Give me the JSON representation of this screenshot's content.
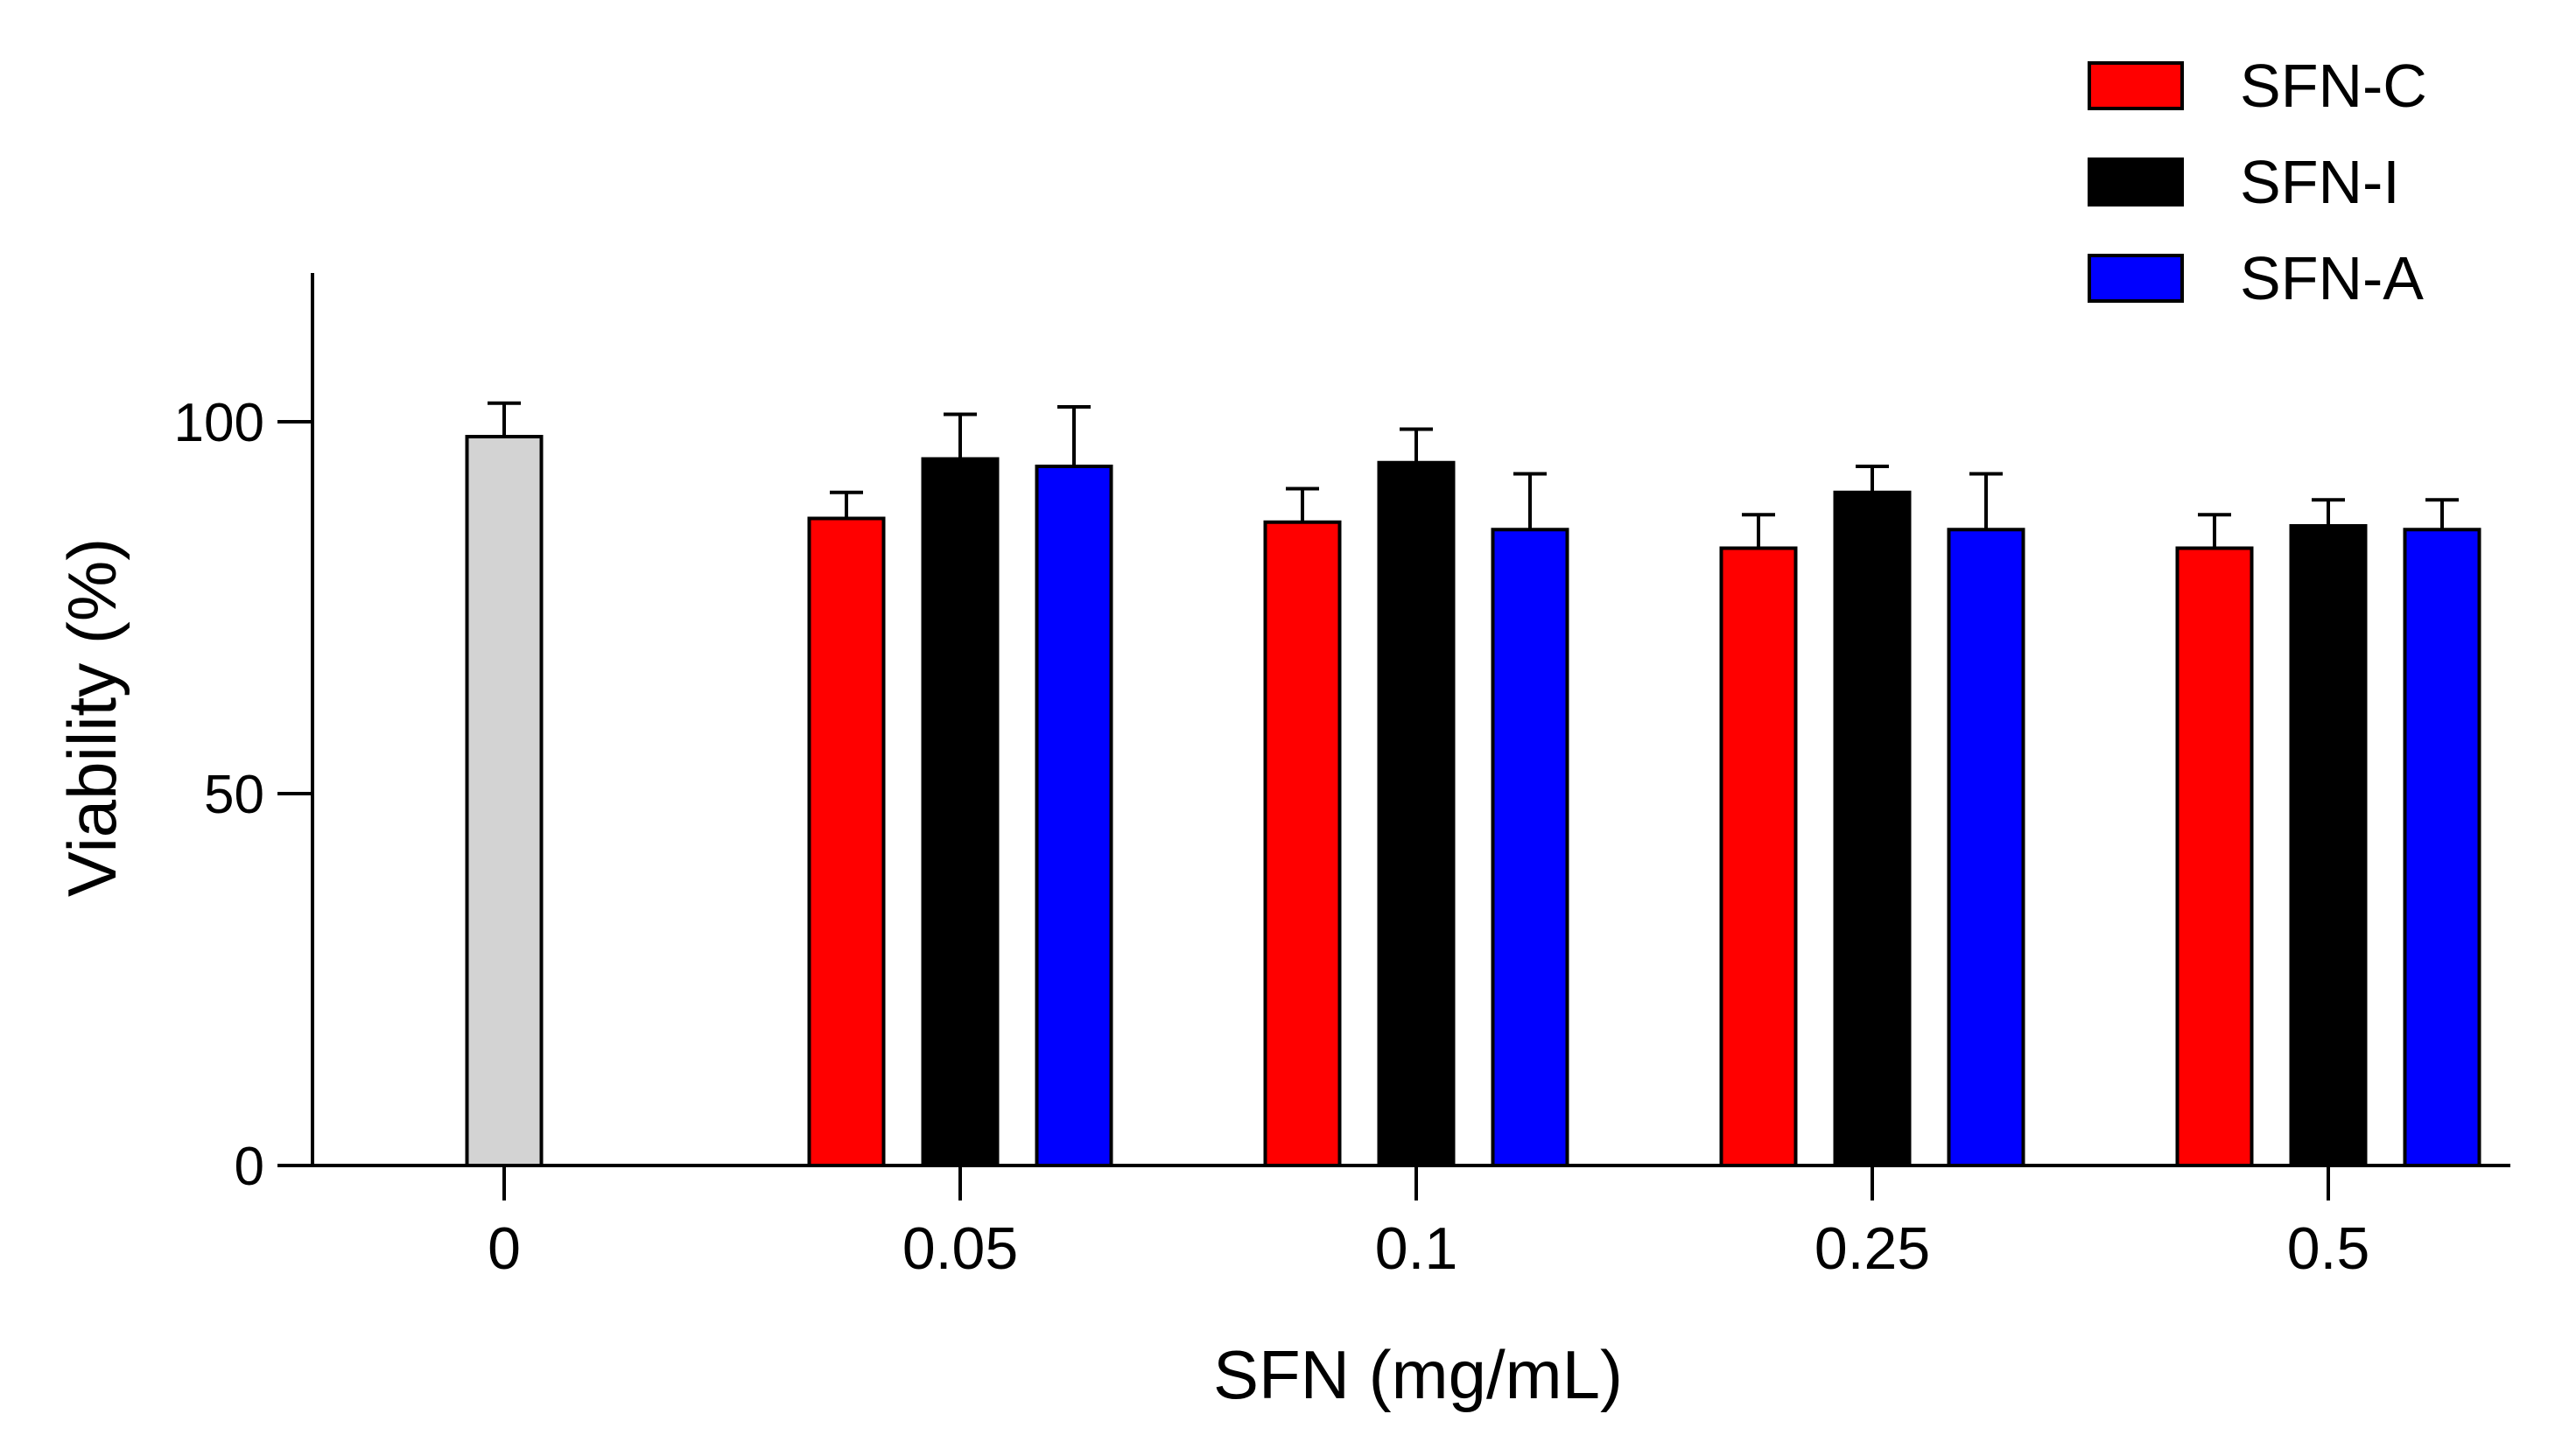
{
  "chart_data": {
    "type": "bar",
    "title": "",
    "xlabel": "SFN (mg/mL)",
    "ylabel": "Viability (%)",
    "ylim": [
      0,
      120
    ],
    "yticks": [
      0,
      50,
      100
    ],
    "categories": [
      "0",
      "0.05",
      "0.1",
      "0.25",
      "0.5"
    ],
    "control": {
      "category": "0",
      "value": 98,
      "error": 4.5,
      "color": "#d3d3d3"
    },
    "series": [
      {
        "name": "SFN-C",
        "color": "#ff0000",
        "values": [
          null,
          87,
          86.5,
          83,
          83
        ],
        "errors": [
          null,
          3.5,
          4.5,
          4.5,
          4.5
        ]
      },
      {
        "name": "SFN-I",
        "color": "#000000",
        "values": [
          null,
          95,
          94.5,
          90.5,
          86
        ],
        "errors": [
          null,
          6,
          4.5,
          3.5,
          3.5
        ]
      },
      {
        "name": "SFN-A",
        "color": "#0000ff",
        "values": [
          null,
          94,
          85.5,
          85.5,
          85.5
        ],
        "errors": [
          null,
          8,
          7.5,
          7.5,
          4
        ]
      }
    ],
    "legend": {
      "position": "top-right"
    }
  }
}
